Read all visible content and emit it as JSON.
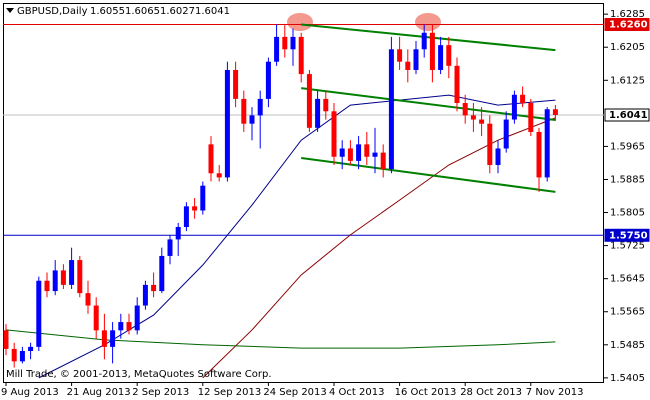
{
  "chart_data": {
    "type": "candlestick",
    "title": "GBPUSD,Daily",
    "quote": [
      1.6055,
      1.6065,
      1.6027,
      1.6041
    ],
    "footer": "Mill Trade, © 2001-2013, MetaQuotes Software Corp.",
    "categories": [
      "9 Aug 2013",
      null,
      null,
      null,
      null,
      null,
      null,
      null,
      "21 Aug 2013",
      null,
      null,
      null,
      null,
      null,
      null,
      null,
      "2 Sep 2013",
      null,
      null,
      null,
      null,
      null,
      null,
      null,
      "12 Sep 2013",
      null,
      null,
      null,
      null,
      null,
      null,
      null,
      "24 Sep 2013",
      null,
      null,
      null,
      null,
      null,
      null,
      null,
      "4 Oct 2013",
      null,
      null,
      null,
      null,
      null,
      null,
      null,
      "16 Oct 2013",
      null,
      null,
      null,
      null,
      null,
      null,
      null,
      "28 Oct 2013",
      null,
      null,
      null,
      null,
      null,
      null,
      null,
      "7 Nov 2013",
      null,
      null,
      null
    ],
    "open": [
      1.552,
      1.5475,
      1.5445,
      1.547,
      1.548,
      1.564,
      1.5615,
      1.5665,
      1.563,
      1.569,
      1.561,
      1.558,
      1.552,
      1.548,
      1.552,
      1.554,
      1.552,
      1.558,
      1.563,
      1.5615,
      1.57,
      1.574,
      1.577,
      1.582,
      1.581,
      1.597,
      1.59,
      1.589,
      1.615,
      1.608,
      1.602,
      1.604,
      1.608,
      1.617,
      1.623,
      1.62,
      1.623,
      1.614,
      1.601,
      1.608,
      1.605,
      1.594,
      1.596,
      1.593,
      1.597,
      1.594,
      1.595,
      1.591,
      1.62,
      1.617,
      1.615,
      1.62,
      1.624,
      1.615,
      1.621,
      1.616,
      1.607,
      1.604,
      1.603,
      1.602,
      1.592,
      1.596,
      1.603,
      1.609,
      1.607,
      1.6,
      1.589,
      1.6055
    ],
    "high": [
      1.5535,
      1.549,
      1.548,
      1.549,
      1.565,
      1.566,
      1.569,
      1.568,
      1.572,
      1.57,
      1.564,
      1.56,
      1.556,
      1.554,
      1.556,
      1.556,
      1.56,
      1.564,
      1.566,
      1.572,
      1.575,
      1.578,
      1.583,
      1.584,
      1.588,
      1.599,
      1.592,
      1.617,
      1.617,
      1.61,
      1.606,
      1.61,
      1.618,
      1.626,
      1.626,
      1.625,
      1.624,
      1.615,
      1.61,
      1.61,
      1.607,
      1.598,
      1.598,
      1.599,
      1.6,
      1.601,
      1.597,
      1.623,
      1.623,
      1.62,
      1.622,
      1.626,
      1.626,
      1.623,
      1.623,
      1.618,
      1.609,
      1.607,
      1.606,
      1.604,
      1.598,
      1.605,
      1.61,
      1.611,
      1.608,
      1.601,
      1.606,
      1.6065
    ],
    "low": [
      1.546,
      1.543,
      1.544,
      1.545,
      1.547,
      1.56,
      1.5605,
      1.562,
      1.562,
      1.56,
      1.556,
      1.55,
      1.545,
      1.544,
      1.55,
      1.551,
      1.551,
      1.557,
      1.56,
      1.561,
      1.568,
      1.57,
      1.576,
      1.579,
      1.58,
      1.588,
      1.588,
      1.588,
      1.606,
      1.6,
      1.598,
      1.596,
      1.606,
      1.616,
      1.618,
      1.616,
      1.612,
      1.6,
      1.6,
      1.603,
      1.592,
      1.591,
      1.592,
      1.591,
      1.592,
      1.59,
      1.589,
      1.59,
      1.615,
      1.612,
      1.614,
      1.618,
      1.612,
      1.614,
      1.613,
      1.605,
      1.602,
      1.6,
      1.599,
      1.59,
      1.59,
      1.595,
      1.602,
      1.606,
      1.599,
      1.5855,
      1.588,
      1.6027
    ],
    "close": [
      1.5475,
      1.5445,
      1.547,
      1.548,
      1.564,
      1.5615,
      1.5665,
      1.563,
      1.569,
      1.561,
      1.558,
      1.552,
      1.548,
      1.552,
      1.554,
      1.552,
      1.558,
      1.563,
      1.5615,
      1.57,
      1.574,
      1.577,
      1.582,
      1.581,
      1.587,
      1.59,
      1.589,
      1.615,
      1.608,
      1.602,
      1.604,
      1.608,
      1.617,
      1.623,
      1.62,
      1.623,
      1.614,
      1.601,
      1.608,
      1.605,
      1.594,
      1.596,
      1.593,
      1.597,
      1.594,
      1.595,
      1.591,
      1.62,
      1.617,
      1.615,
      1.62,
      1.624,
      1.615,
      1.621,
      1.616,
      1.607,
      1.604,
      1.603,
      1.602,
      1.592,
      1.596,
      1.603,
      1.609,
      1.607,
      1.6,
      1.589,
      1.6055,
      1.6041
    ],
    "up_color": "#0000ff",
    "down_color": "#ff0000",
    "moving_averages": [
      {
        "color": "#00008b",
        "x": [
          4,
          12,
          18,
          24,
          30,
          36,
          42,
          48,
          54,
          60,
          67
        ],
        "values": [
          1.5405,
          1.5485,
          1.5557,
          1.5678,
          1.5823,
          1.598,
          1.6065,
          1.6077,
          1.6089,
          1.6065,
          1.6077
        ]
      },
      {
        "color": "#8b0000",
        "x": [
          24,
          30,
          36,
          42,
          48,
          54,
          60,
          67
        ],
        "values": [
          1.5405,
          1.5521,
          1.5654,
          1.5751,
          1.5835,
          1.592,
          1.598,
          1.6034
        ]
      },
      {
        "color": "#006400",
        "x": [
          0,
          12,
          24,
          36,
          48,
          60,
          67
        ],
        "values": [
          1.5521,
          1.5497,
          1.5485,
          1.5477,
          1.5477,
          1.5485,
          1.5492
        ]
      }
    ],
    "trendlines": [
      {
        "color": "#008000",
        "x": [
          36,
          67
        ],
        "values": [
          1.626,
          1.6198
        ]
      },
      {
        "color": "#008000",
        "x": [
          36,
          67
        ],
        "values": [
          1.6106,
          1.6029
        ]
      },
      {
        "color": "#008000",
        "x": [
          36,
          67
        ],
        "values": [
          1.5937,
          1.5855
        ]
      }
    ],
    "levels": [
      {
        "value": 1.626,
        "label": "1.6260",
        "color": "#e00000"
      },
      {
        "value": 1.575,
        "label": "1.5750",
        "color": "#0000cc"
      },
      {
        "value": 1.6041,
        "label": "1.6041",
        "color": "#c0c0c0"
      }
    ],
    "ylim": [
      1.5395,
      1.6312
    ],
    "yticks": [
      1.6285,
      1.6205,
      1.6125,
      1.5965,
      1.5885,
      1.5805,
      1.5725,
      1.5645,
      1.5565,
      1.5485,
      1.5405
    ]
  }
}
